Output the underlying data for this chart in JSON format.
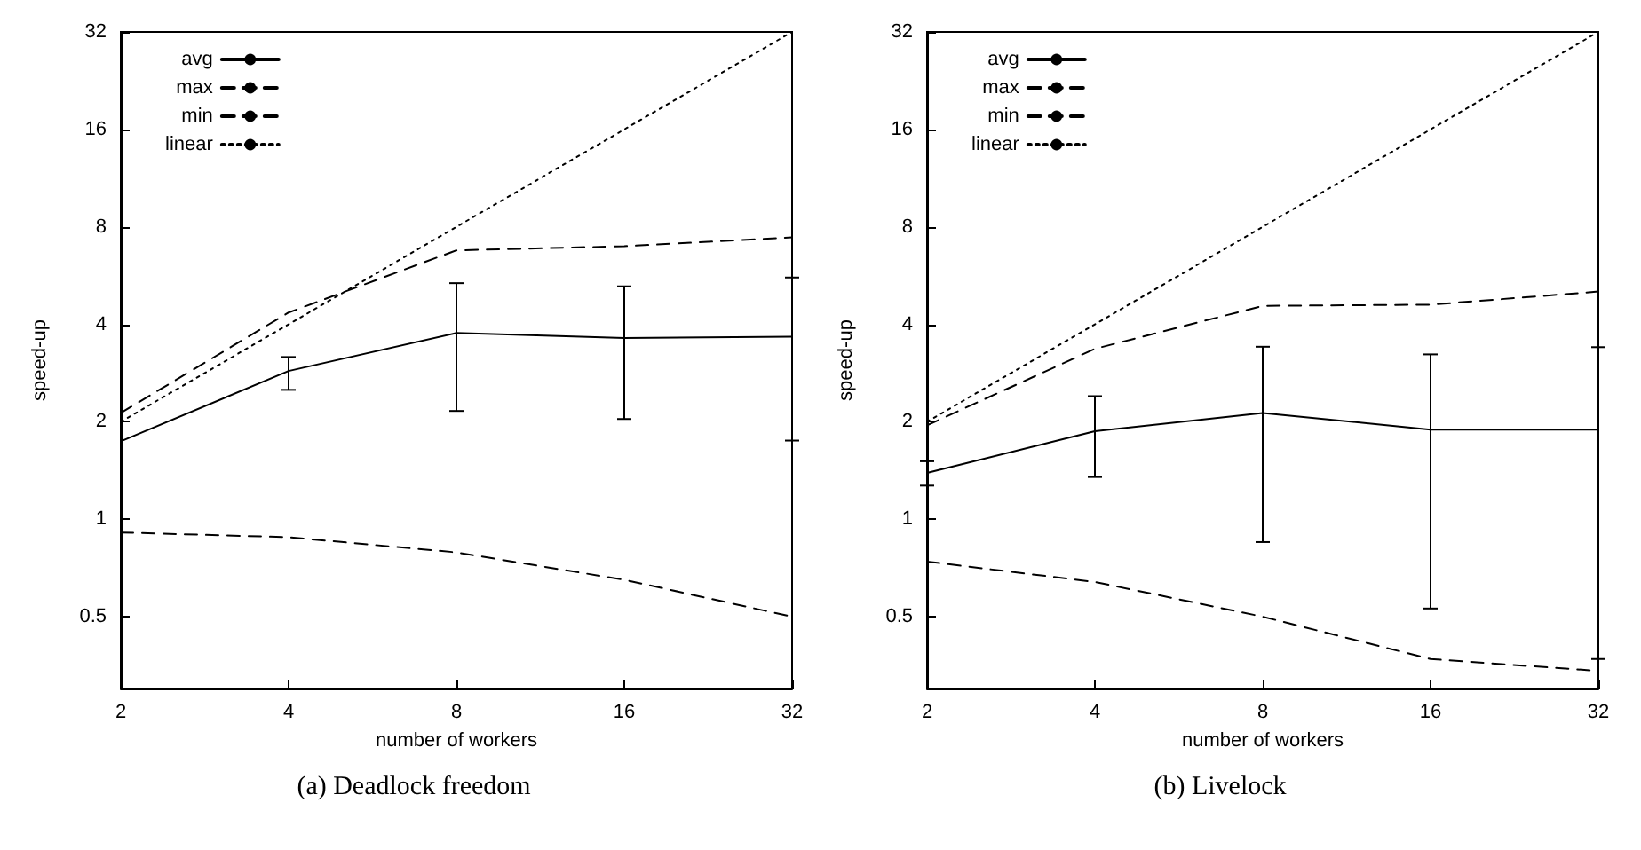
{
  "chart_data": [
    {
      "type": "line",
      "title": "(a) Deadlock freedom",
      "xlabel": "number of workers",
      "ylabel": "speed-up",
      "log": "xy",
      "xlim": [
        2,
        32
      ],
      "xticks": [
        2,
        4,
        8,
        16,
        32
      ],
      "ylim": [
        0.3,
        32
      ],
      "yticks": [
        0.5,
        1,
        2,
        4,
        8,
        16,
        32
      ],
      "grid": false,
      "legend": "top left",
      "x": [
        2,
        4,
        8,
        16,
        32
      ],
      "series": [
        {
          "name": "avg",
          "color": "#000000",
          "line_style": "solid",
          "values": [
            1.74,
            2.87,
            3.76,
            3.63,
            3.66
          ],
          "errors": [
            null,
            [
              2.51,
              3.17
            ],
            [
              2.16,
              5.36
            ],
            [
              2.04,
              5.24
            ],
            [
              1.75,
              5.58
            ]
          ]
        },
        {
          "name": "max",
          "color": "#000000",
          "line_style": "dashed",
          "values": [
            2.13,
            4.35,
            6.77,
            6.97,
            7.42
          ]
        },
        {
          "name": "min",
          "color": "#000000",
          "line_style": "dashed",
          "values": [
            0.91,
            0.88,
            0.79,
            0.65,
            0.5
          ]
        },
        {
          "name": "linear",
          "color": "#000000",
          "line_style": "dotted",
          "values": [
            2,
            4,
            8,
            16,
            32
          ]
        }
      ]
    },
    {
      "type": "line",
      "title": "(b) Livelock",
      "xlabel": "number of workers",
      "ylabel": "speed-up",
      "log": "xy",
      "xlim": [
        2,
        32
      ],
      "xticks": [
        2,
        4,
        8,
        16,
        32
      ],
      "ylim": [
        0.3,
        32
      ],
      "yticks": [
        0.5,
        1,
        2,
        4,
        8,
        16,
        32
      ],
      "grid": false,
      "legend": "top left",
      "x": [
        2,
        4,
        8,
        16,
        32
      ],
      "series": [
        {
          "name": "avg",
          "color": "#000000",
          "line_style": "solid",
          "values": [
            1.39,
            1.87,
            2.13,
            1.89,
            1.89
          ],
          "errors": [
            [
              1.27,
              1.51
            ],
            [
              1.35,
              2.4
            ],
            [
              0.85,
              3.41
            ],
            [
              0.53,
              3.23
            ],
            [
              0.37,
              3.4
            ]
          ]
        },
        {
          "name": "max",
          "color": "#000000",
          "line_style": "dashed",
          "values": [
            1.95,
            3.36,
            4.56,
            4.6,
            5.05
          ]
        },
        {
          "name": "min",
          "color": "#000000",
          "line_style": "dashed",
          "values": [
            0.74,
            0.64,
            0.5,
            0.37,
            0.34
          ]
        },
        {
          "name": "linear",
          "color": "#000000",
          "line_style": "dotted",
          "values": [
            2,
            4,
            8,
            16,
            32
          ]
        }
      ]
    }
  ]
}
